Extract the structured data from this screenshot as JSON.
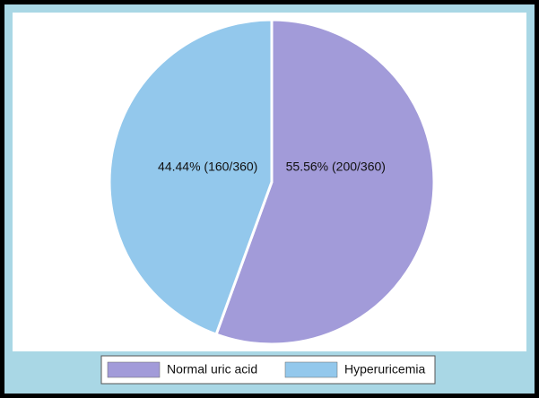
{
  "chart_data": {
    "type": "pie",
    "categories": [
      "Normal uric acid",
      "Hyperuricemia"
    ],
    "values": [
      55.56,
      44.44
    ],
    "value_labels": [
      "55.56% (200/360)",
      "44.44% (160/360)"
    ],
    "colors": [
      "#a29bd9",
      "#93c8ec"
    ],
    "legend": "bottom"
  }
}
